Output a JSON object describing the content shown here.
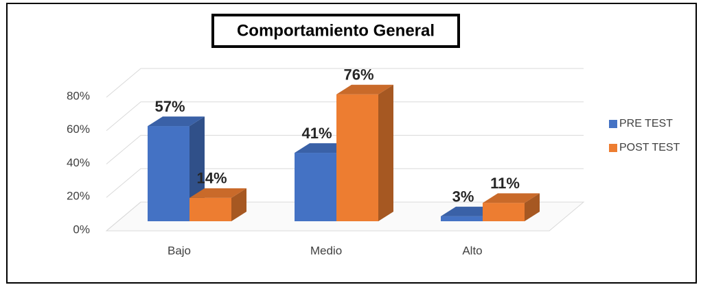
{
  "chart_data": {
    "type": "bar3d",
    "title": "Comportamiento General",
    "categories": [
      "Bajo",
      "Medio",
      "Alto"
    ],
    "series": [
      {
        "name": "PRE TEST",
        "color": "#4472c4",
        "values": [
          57,
          41,
          3
        ],
        "value_labels": [
          "57%",
          "41%",
          "3%"
        ]
      },
      {
        "name": "POST TEST",
        "color": "#ed7d31",
        "values": [
          14,
          76,
          11
        ],
        "value_labels": [
          "14%",
          "76%",
          "11%"
        ]
      }
    ],
    "ylim": [
      0,
      80
    ],
    "yticks": [
      {
        "value": 0,
        "label": "0%"
      },
      {
        "value": 20,
        "label": "20%"
      },
      {
        "value": 40,
        "label": "40%"
      },
      {
        "value": 60,
        "label": "60%"
      },
      {
        "value": 80,
        "label": "80%"
      }
    ],
    "grid": true,
    "legend": "right"
  }
}
